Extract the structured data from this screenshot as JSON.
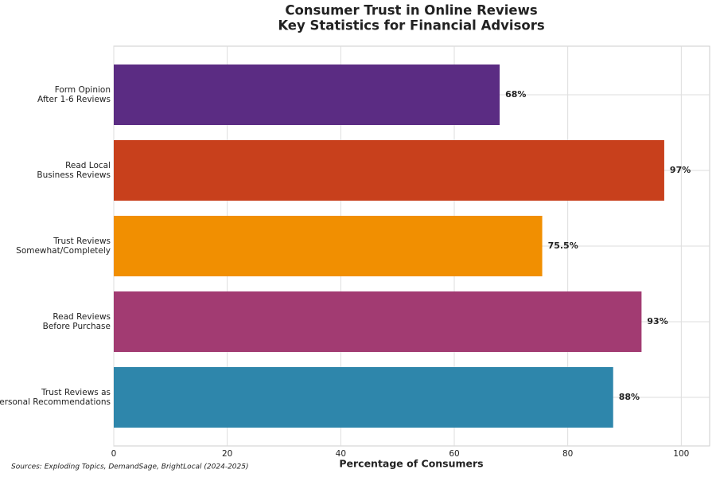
{
  "chart_data": {
    "type": "barh",
    "title": "Consumer Trust in Online Reviews",
    "subtitle": "Key Statistics for Financial Advisors",
    "x_label": "Percentage of Consumers",
    "source": "Sources: Exploding Topics, DemandSage, BrightLocal (2024-2025)",
    "categories": [
      "Form Opinion\nAfter 1-6 Reviews",
      "Read Local\nBusiness Reviews",
      "Trust Reviews\nSomewhat/Completely",
      "Read Reviews\nBefore Purchase",
      "Trust Reviews as\nPersonal Recommendations"
    ],
    "values": [
      68,
      97,
      75.5,
      93,
      88
    ],
    "value_labels": [
      "68%",
      "97%",
      "75.5%",
      "93%",
      "88%"
    ],
    "colors": [
      "#5b2c83",
      "#c8401c",
      "#f18f01",
      "#a23b72",
      "#2e86ab"
    ],
    "xlim": [
      0,
      105
    ],
    "xticks": [
      0,
      20,
      40,
      60,
      80,
      100
    ],
    "grid": true
  }
}
